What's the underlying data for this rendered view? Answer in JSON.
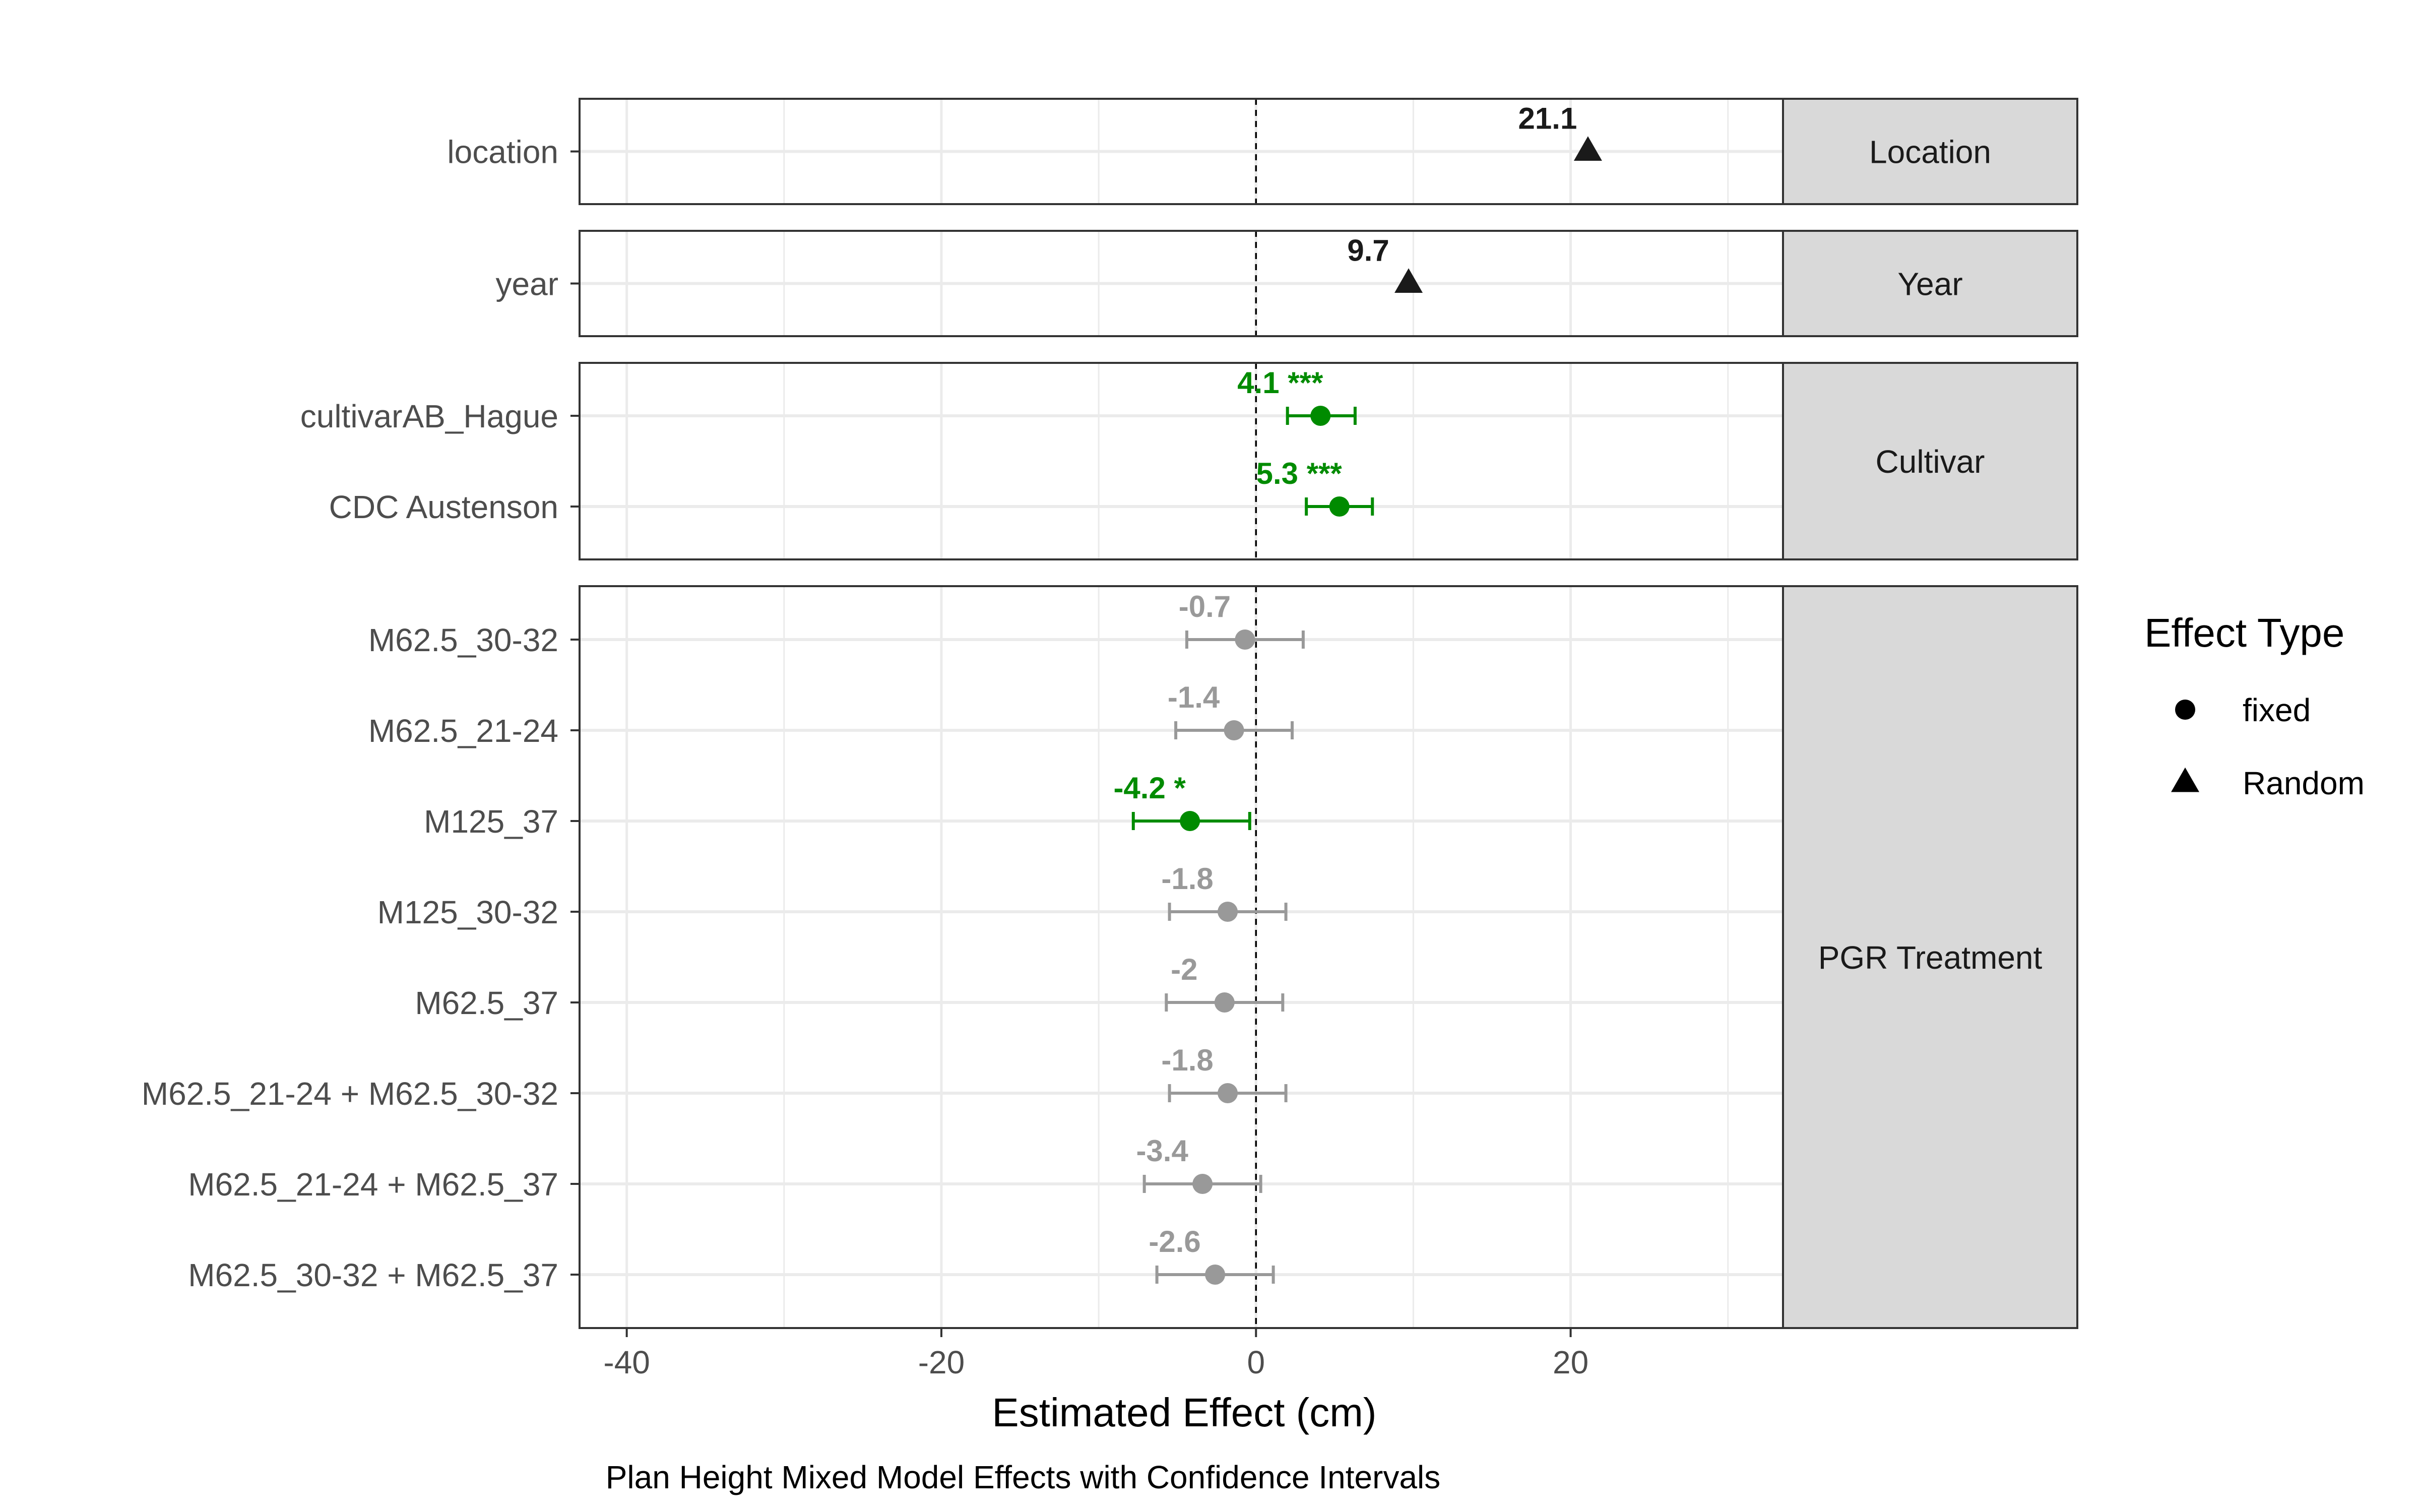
{
  "chart_data": {
    "type": "scatter",
    "subtype": "forest-plot-faceted",
    "xlabel": "Estimated Effect (cm)",
    "caption": "Plan Height Mixed Model Effects with Confidence Intervals",
    "xlim": [
      -43,
      33.5
    ],
    "x_ticks": [
      -40,
      -20,
      0,
      20
    ],
    "x_tick_labels": [
      "-40",
      "-20",
      "0",
      "20"
    ],
    "reference_line": 0,
    "grid": true,
    "colors": {
      "significant": "#008B00",
      "not_significant": "#999999",
      "random": "#1a1a1a",
      "strip_fill": "#d9d9d9",
      "grid": "#ebebeb",
      "panel_border": "#333333"
    },
    "legend": {
      "title": "Effect Type",
      "position": "right",
      "entries": [
        {
          "label": "fixed",
          "shape": "circle"
        },
        {
          "label": "Random",
          "shape": "triangle"
        }
      ]
    },
    "facets": [
      {
        "strip": "Location",
        "terms": [
          {
            "term": "location",
            "estimate": 21.1,
            "label": "21.1",
            "type": "Random",
            "sig": "random"
          }
        ]
      },
      {
        "strip": "Year",
        "terms": [
          {
            "term": "year",
            "estimate": 9.7,
            "label": "9.7",
            "type": "Random",
            "sig": "random"
          }
        ]
      },
      {
        "strip": "Cultivar",
        "terms": [
          {
            "term": "cultivarAB_Hague",
            "estimate": 4.1,
            "lower": 2.0,
            "upper": 6.3,
            "label": "4.1 ***",
            "type": "fixed",
            "sig": "significant"
          },
          {
            "term": "CDC Austenson",
            "estimate": 5.3,
            "lower": 3.2,
            "upper": 7.4,
            "label": "5.3 ***",
            "type": "fixed",
            "sig": "significant"
          }
        ]
      },
      {
        "strip": "PGR Treatment",
        "terms": [
          {
            "term": "M62.5_30-32",
            "estimate": -0.7,
            "lower": -4.4,
            "upper": 3.0,
            "label": "-0.7",
            "type": "fixed",
            "sig": "not_significant"
          },
          {
            "term": "M62.5_21-24",
            "estimate": -1.4,
            "lower": -5.1,
            "upper": 2.3,
            "label": "-1.4",
            "type": "fixed",
            "sig": "not_significant"
          },
          {
            "term": "M125_37",
            "estimate": -4.2,
            "lower": -7.8,
            "upper": -0.4,
            "label": "-4.2 *",
            "type": "fixed",
            "sig": "significant"
          },
          {
            "term": "M125_30-32",
            "estimate": -1.8,
            "lower": -5.5,
            "upper": 1.9,
            "label": "-1.8",
            "type": "fixed",
            "sig": "not_significant"
          },
          {
            "term": "M62.5_37",
            "estimate": -2.0,
            "lower": -5.7,
            "upper": 1.7,
            "label": "-2",
            "type": "fixed",
            "sig": "not_significant"
          },
          {
            "term": "M62.5_21-24 + M62.5_30-32",
            "estimate": -1.8,
            "lower": -5.5,
            "upper": 1.9,
            "label": "-1.8",
            "type": "fixed",
            "sig": "not_significant"
          },
          {
            "term": "M62.5_21-24 + M62.5_37",
            "estimate": -3.4,
            "lower": -7.1,
            "upper": 0.3,
            "label": "-3.4",
            "type": "fixed",
            "sig": "not_significant"
          },
          {
            "term": "M62.5_30-32 + M62.5_37",
            "estimate": -2.6,
            "lower": -6.3,
            "upper": 1.1,
            "label": "-2.6",
            "type": "fixed",
            "sig": "not_significant"
          }
        ]
      }
    ]
  }
}
